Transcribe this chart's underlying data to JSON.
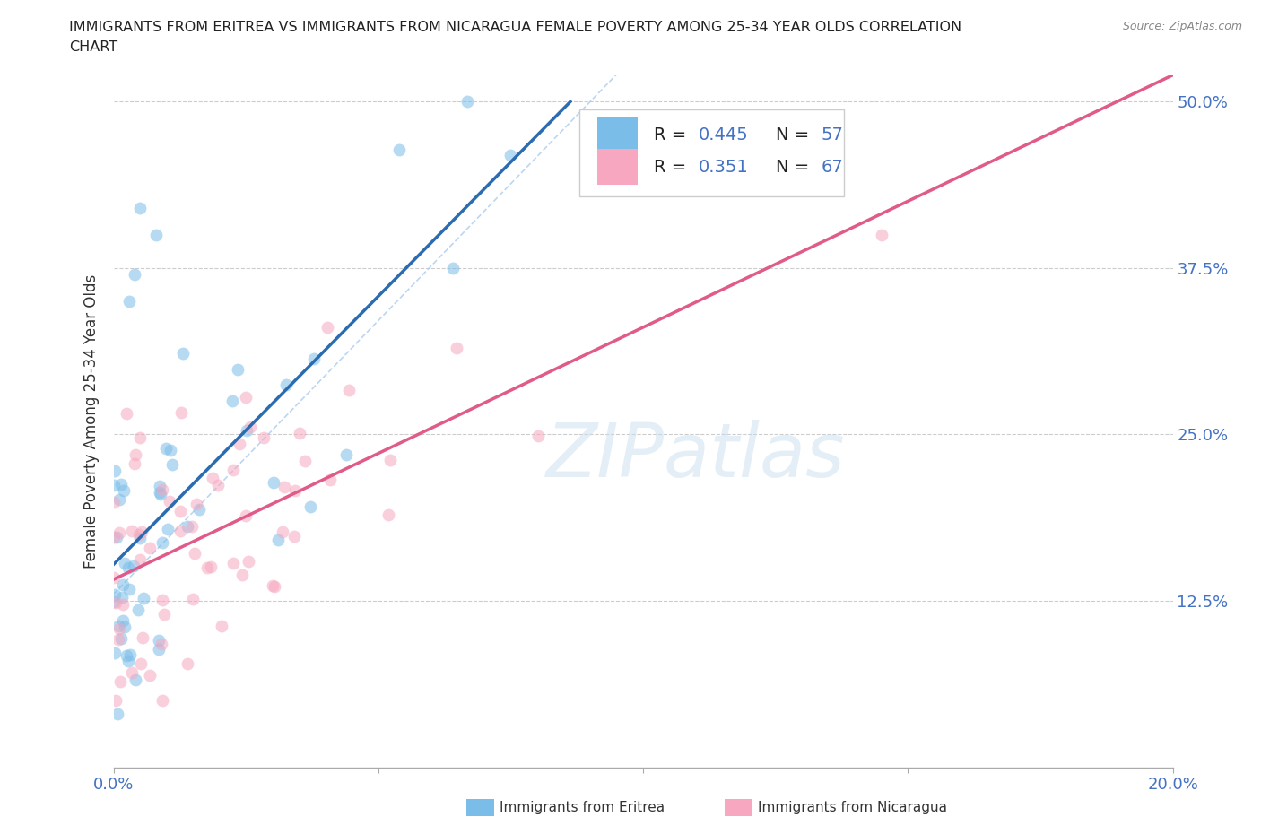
{
  "title_line1": "IMMIGRANTS FROM ERITREA VS IMMIGRANTS FROM NICARAGUA FEMALE POVERTY AMONG 25-34 YEAR OLDS CORRELATION",
  "title_line2": "CHART",
  "source": "Source: ZipAtlas.com",
  "ylabel": "Female Poverty Among 25-34 Year Olds",
  "R_eritrea": 0.445,
  "N_eritrea": 57,
  "R_nicaragua": 0.351,
  "N_nicaragua": 67,
  "color_eritrea": "#7abde8",
  "color_nicaragua": "#f7a8c0",
  "line_color_eritrea": "#2b6cb0",
  "line_color_nicaragua": "#e05a8a",
  "dashed_line_color": "#aaccee",
  "background_color": "#ffffff",
  "grid_color": "#cccccc",
  "title_color": "#222222",
  "tick_color": "#4472c4",
  "xlim": [
    0.0,
    0.2
  ],
  "ylim": [
    0.0,
    0.52
  ],
  "xtick_vals": [
    0.0,
    0.05,
    0.1,
    0.15,
    0.2
  ],
  "ytick_vals": [
    0.0,
    0.125,
    0.25,
    0.375,
    0.5
  ],
  "ytick_labels": [
    "",
    "12.5%",
    "25.0%",
    "37.5%",
    "50.0%"
  ]
}
